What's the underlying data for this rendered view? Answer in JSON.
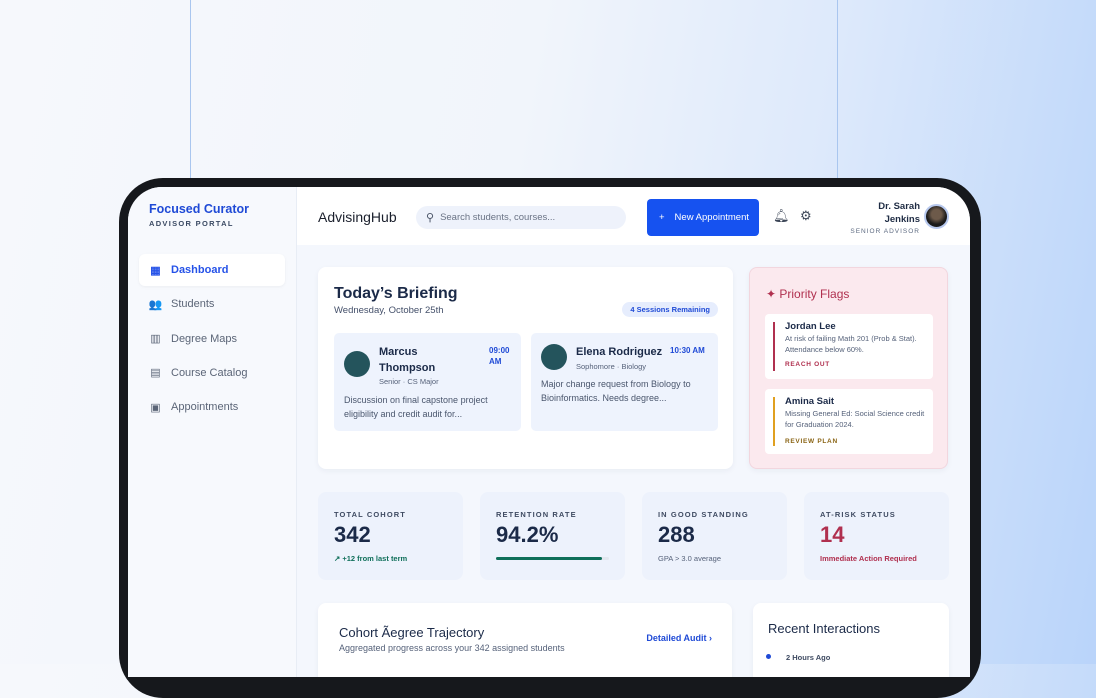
{
  "sidebar": {
    "brand": "Focused Curator",
    "subtitle": "ADVISOR PORTAL",
    "items": [
      {
        "label": "Dashboard",
        "icon": "dashboard-icon",
        "active": true
      },
      {
        "label": "Students",
        "icon": "users-icon"
      },
      {
        "label": "Degree Maps",
        "icon": "map-icon"
      },
      {
        "label": "Course Catalog",
        "icon": "catalog-icon"
      },
      {
        "label": "Appointments",
        "icon": "calendar-icon"
      }
    ]
  },
  "header": {
    "app": "AdvisingHub",
    "search_placeholder": "Search students, courses...",
    "new_button": "New Appointment",
    "user_name": "Dr. Sarah Jenkins",
    "user_role": "SENIOR ADVISOR"
  },
  "briefing": {
    "title": "Today’s Briefing",
    "date": "Wednesday, October 25th",
    "badge": "4 Sessions Remaining",
    "appointments": [
      {
        "name": "Marcus Thompson",
        "time": "09:00 AM",
        "meta": "Senior · CS Major",
        "desc": "Discussion on final capstone project eligibility and credit audit for..."
      },
      {
        "name": "Elena Rodriguez",
        "time": "10:30 AM",
        "meta": "Sophomore · Biology",
        "desc": "Major change request from Biology to Bioinformatics. Needs degree..."
      }
    ]
  },
  "flags": {
    "title": "Priority Flags",
    "items": [
      {
        "name": "Jordan Lee",
        "desc": "At risk of failing Math 201 (Prob & Stat). Attendance below 60%.",
        "action": "REACH OUT",
        "color": "#b0304f"
      },
      {
        "name": "Amina Sait",
        "desc": "Missing General Ed: Social Science credit for Graduation 2024.",
        "action": "REVIEW PLAN",
        "color": "#e0a020"
      }
    ]
  },
  "stats": [
    {
      "label": "TOTAL COHORT",
      "value": "342",
      "sub": "+12 from last term"
    },
    {
      "label": "RETENTION RATE",
      "value": "94.2%",
      "progress": 94.2
    },
    {
      "label": "IN GOOD STANDING",
      "value": "288",
      "sub": "GPA > 3.0 average"
    },
    {
      "label": "AT-RISK STATUS",
      "value": "14",
      "sub": "Immediate Action Required"
    }
  ],
  "trajectory": {
    "title": "Cohort Ãegree Trajectory",
    "subtitle": "Aggregated progress across your 342 assigned students",
    "link": "Detailed Audit ›"
  },
  "recent": {
    "title": "Recent Interactions",
    "first_time": "2 Hours Ago"
  }
}
